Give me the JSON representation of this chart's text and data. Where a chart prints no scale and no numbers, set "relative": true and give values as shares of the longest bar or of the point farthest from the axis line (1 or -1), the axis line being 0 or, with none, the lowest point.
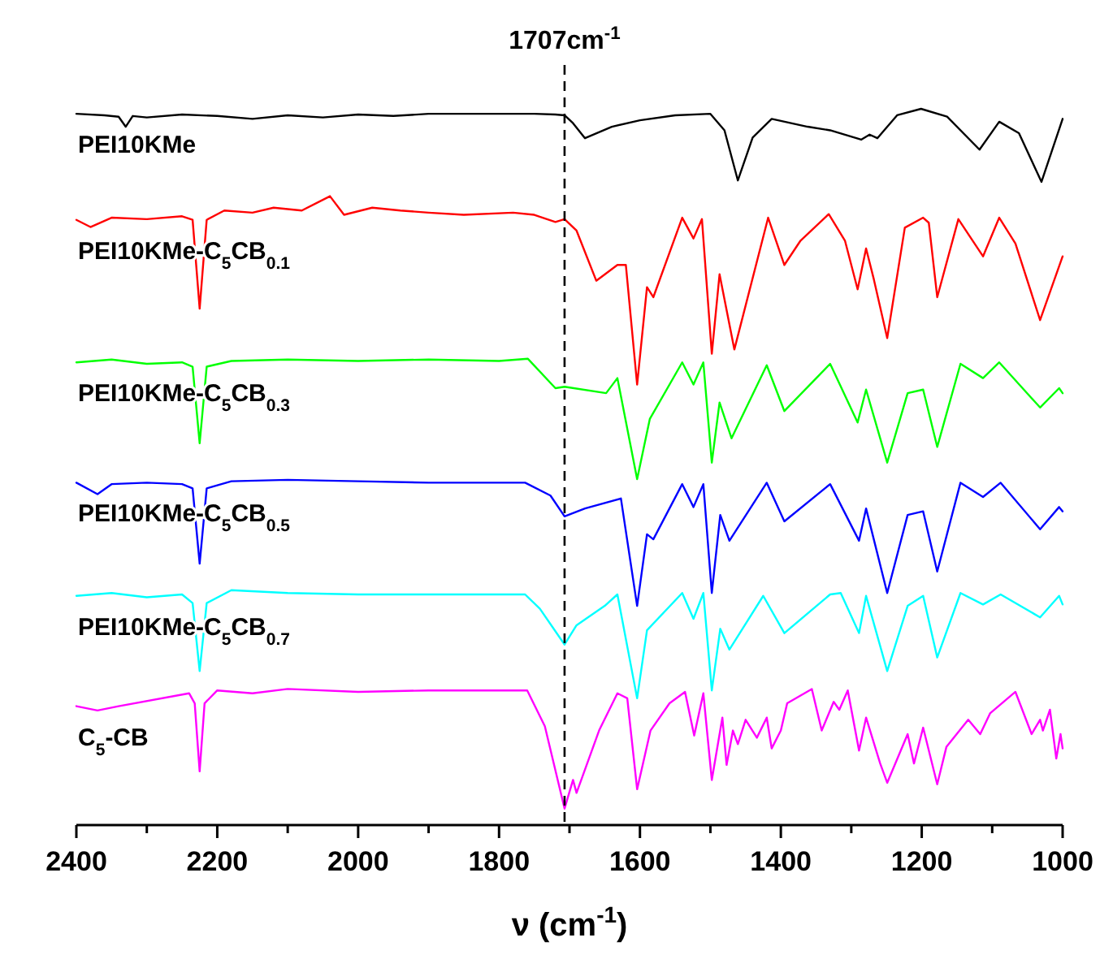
{
  "chart_data": {
    "type": "line",
    "relative": true,
    "xlabel": "ν (cm$^{-1}$)",
    "xlim": [
      2400,
      1000
    ],
    "xticks": [
      2400,
      {
        "value": 2300,
        "label": null
      },
      2200,
      {
        "value": 2100,
        "label": null
      },
      2000,
      {
        "value": 1900,
        "label": null
      },
      1800,
      {
        "value": 1700,
        "label": null
      },
      1600,
      {
        "value": 1500,
        "label": null
      },
      1400,
      {
        "value": 1300,
        "label": null
      },
      1200,
      {
        "value": 1100,
        "label": null
      },
      1000
    ],
    "grid": false,
    "marker": "none",
    "line_style": "solid",
    "ref_lines": [
      {
        "axis": "x",
        "value": 1707,
        "label": "1707cm$^{-1}$",
        "line_style": "dashed",
        "color": "#000000"
      }
    ],
    "series": [
      {
        "name": "PEI10KMe",
        "color": "#000000",
        "x": [
          2400,
          2360,
          2340,
          2330,
          2320,
          2300,
          2250,
          2200,
          2150,
          2100,
          2050,
          2000,
          1950,
          1900,
          1850,
          1800,
          1750,
          1720,
          1707,
          1695,
          1678,
          1640,
          1600,
          1550,
          1500,
          1480,
          1461,
          1440,
          1413,
          1362,
          1330,
          1286,
          1274,
          1263,
          1235,
          1201,
          1164,
          1118,
          1090,
          1062,
          1030,
          1000
        ],
        "values": [
          0.993,
          0.991,
          0.989,
          0.975,
          0.99,
          0.988,
          0.992,
          0.99,
          0.986,
          0.991,
          0.988,
          0.992,
          0.99,
          0.993,
          0.993,
          0.993,
          0.993,
          0.992,
          0.991,
          0.98,
          0.959,
          0.975,
          0.984,
          0.991,
          0.993,
          0.97,
          0.9,
          0.96,
          0.986,
          0.975,
          0.97,
          0.957,
          0.964,
          0.959,
          0.991,
          1.0,
          0.989,
          0.943,
          0.982,
          0.966,
          0.898,
          0.986
        ]
      },
      {
        "name": "PEI10KMe-C$_{5}$CB$_{0.1}$",
        "color": "#ff0000",
        "x": [
          2400,
          2380,
          2350,
          2300,
          2250,
          2235,
          2225,
          2215,
          2190,
          2150,
          2120,
          2080,
          2040,
          2020,
          1980,
          1940,
          1900,
          1850,
          1780,
          1750,
          1720,
          1707,
          1690,
          1662,
          1632,
          1620,
          1604,
          1590,
          1581,
          1540,
          1524,
          1512,
          1498,
          1487,
          1466,
          1418,
          1395,
          1372,
          1332,
          1309,
          1291,
          1279,
          1268,
          1249,
          1224,
          1198,
          1190,
          1178,
          1148,
          1113,
          1090,
          1067,
          1032,
          1000
        ],
        "values": [
          0.845,
          0.835,
          0.848,
          0.846,
          0.85,
          0.845,
          0.721,
          0.845,
          0.858,
          0.855,
          0.862,
          0.858,
          0.878,
          0.852,
          0.862,
          0.858,
          0.855,
          0.852,
          0.855,
          0.852,
          0.842,
          0.846,
          0.83,
          0.76,
          0.782,
          0.782,
          0.615,
          0.751,
          0.737,
          0.848,
          0.819,
          0.846,
          0.658,
          0.769,
          0.664,
          0.848,
          0.782,
          0.816,
          0.853,
          0.816,
          0.748,
          0.805,
          0.762,
          0.68,
          0.834,
          0.848,
          0.841,
          0.737,
          0.846,
          0.794,
          0.848,
          0.812,
          0.705,
          0.794
        ]
      },
      {
        "name": "PEI10KMe-C$_{5}$CB$_{0.3}$",
        "color": "#00ff00",
        "x": [
          2400,
          2350,
          2300,
          2250,
          2235,
          2225,
          2215,
          2180,
          2100,
          2000,
          1900,
          1800,
          1759,
          1720,
          1707,
          1648,
          1632,
          1604,
          1586,
          1540,
          1524,
          1510,
          1498,
          1487,
          1470,
          1420,
          1395,
          1330,
          1291,
          1279,
          1249,
          1220,
          1198,
          1178,
          1145,
          1113,
          1090,
          1032,
          1005,
          1000
        ],
        "values": [
          0.646,
          0.65,
          0.644,
          0.646,
          0.64,
          0.533,
          0.64,
          0.648,
          0.65,
          0.648,
          0.65,
          0.648,
          0.651,
          0.61,
          0.612,
          0.603,
          0.624,
          0.483,
          0.567,
          0.646,
          0.615,
          0.646,
          0.506,
          0.59,
          0.54,
          0.642,
          0.578,
          0.644,
          0.562,
          0.608,
          0.506,
          0.603,
          0.608,
          0.528,
          0.644,
          0.624,
          0.646,
          0.583,
          0.61,
          0.603
        ]
      },
      {
        "name": "PEI10KMe-C$_{5}$CB$_{0.5}$",
        "color": "#0000ff",
        "x": [
          2400,
          2370,
          2350,
          2300,
          2250,
          2235,
          2225,
          2215,
          2180,
          2100,
          2000,
          1900,
          1800,
          1763,
          1727,
          1707,
          1678,
          1627,
          1604,
          1590,
          1581,
          1540,
          1524,
          1510,
          1498,
          1486,
          1473,
          1420,
          1395,
          1330,
          1289,
          1279,
          1249,
          1220,
          1198,
          1178,
          1145,
          1113,
          1088,
          1032,
          1005,
          1000
        ],
        "values": [
          0.478,
          0.462,
          0.476,
          0.478,
          0.476,
          0.47,
          0.365,
          0.47,
          0.48,
          0.482,
          0.48,
          0.478,
          0.478,
          0.478,
          0.46,
          0.431,
          0.442,
          0.456,
          0.306,
          0.406,
          0.399,
          0.476,
          0.444,
          0.476,
          0.324,
          0.433,
          0.397,
          0.478,
          0.424,
          0.476,
          0.397,
          0.442,
          0.324,
          0.433,
          0.438,
          0.354,
          0.478,
          0.458,
          0.478,
          0.413,
          0.444,
          0.438
        ]
      },
      {
        "name": "PEI10KMe-C$_{5}$CB$_{0.7}$",
        "color": "#00ffff",
        "x": [
          2400,
          2350,
          2300,
          2250,
          2235,
          2225,
          2215,
          2180,
          2100,
          2000,
          1900,
          1800,
          1763,
          1742,
          1707,
          1690,
          1650,
          1632,
          1604,
          1590,
          1540,
          1524,
          1510,
          1498,
          1486,
          1473,
          1425,
          1395,
          1330,
          1315,
          1289,
          1279,
          1249,
          1220,
          1198,
          1178,
          1145,
          1113,
          1088,
          1032,
          1005,
          1000
        ],
        "values": [
          0.32,
          0.324,
          0.318,
          0.322,
          0.31,
          0.215,
          0.31,
          0.328,
          0.324,
          0.322,
          0.322,
          0.322,
          0.322,
          0.302,
          0.252,
          0.279,
          0.306,
          0.322,
          0.177,
          0.272,
          0.324,
          0.288,
          0.324,
          0.188,
          0.274,
          0.245,
          0.32,
          0.268,
          0.322,
          0.324,
          0.268,
          0.32,
          0.215,
          0.306,
          0.32,
          0.234,
          0.324,
          0.308,
          0.322,
          0.29,
          0.32,
          0.308
        ]
      },
      {
        "name": "C$_{5}$-CB",
        "color": "#ff00ff",
        "x": [
          2400,
          2370,
          2340,
          2240,
          2232,
          2225,
          2218,
          2200,
          2150,
          2100,
          2000,
          1900,
          1800,
          1760,
          1735,
          1707,
          1695,
          1690,
          1658,
          1632,
          1618,
          1604,
          1585,
          1558,
          1536,
          1523,
          1510,
          1498,
          1483,
          1477,
          1468,
          1461,
          1450,
          1434,
          1420,
          1413,
          1400,
          1391,
          1356,
          1342,
          1325,
          1317,
          1305,
          1289,
          1279,
          1259,
          1249,
          1220,
          1211,
          1198,
          1178,
          1165,
          1134,
          1117,
          1103,
          1067,
          1044,
          1032,
          1028,
          1018,
          1009,
          1003,
          1000
        ],
        "values": [
          0.166,
          0.16,
          0.166,
          0.184,
          0.17,
          0.075,
          0.17,
          0.188,
          0.184,
          0.19,
          0.186,
          0.188,
          0.188,
          0.188,
          0.138,
          0.023,
          0.063,
          0.045,
          0.132,
          0.184,
          0.177,
          0.05,
          0.132,
          0.17,
          0.186,
          0.125,
          0.184,
          0.063,
          0.15,
          0.084,
          0.132,
          0.113,
          0.147,
          0.122,
          0.15,
          0.107,
          0.132,
          0.17,
          0.19,
          0.132,
          0.172,
          0.161,
          0.188,
          0.104,
          0.15,
          0.086,
          0.059,
          0.127,
          0.086,
          0.136,
          0.057,
          0.109,
          0.147,
          0.127,
          0.156,
          0.186,
          0.127,
          0.147,
          0.132,
          0.161,
          0.093,
          0.127,
          0.107
        ]
      }
    ]
  }
}
